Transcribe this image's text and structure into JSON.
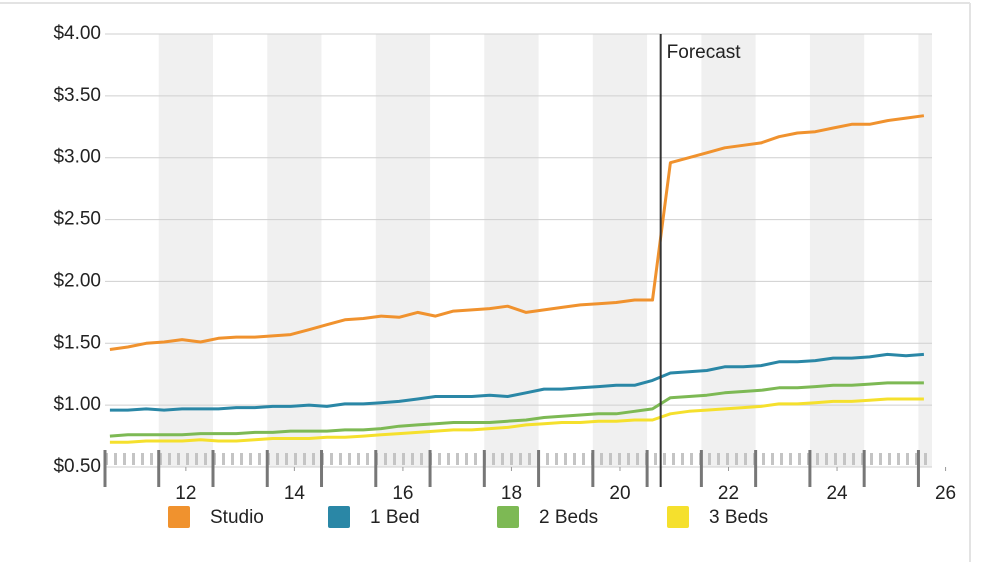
{
  "chart_data": {
    "type": "line",
    "x": [
      10.6,
      10.93,
      11.27,
      11.6,
      11.93,
      12.27,
      12.6,
      12.93,
      13.27,
      13.6,
      13.93,
      14.27,
      14.6,
      14.93,
      15.27,
      15.6,
      15.93,
      16.27,
      16.6,
      16.93,
      17.27,
      17.6,
      17.93,
      18.27,
      18.6,
      18.93,
      19.27,
      19.6,
      19.93,
      20.27,
      20.6,
      20.93,
      21.27,
      21.6,
      21.93,
      22.27,
      22.6,
      22.93,
      23.27,
      23.6,
      23.93,
      24.27,
      24.6,
      24.93,
      25.27,
      25.6
    ],
    "series": [
      {
        "name": "Studio",
        "color": "#f0922e",
        "values": [
          1.45,
          1.47,
          1.5,
          1.51,
          1.53,
          1.51,
          1.54,
          1.55,
          1.55,
          1.56,
          1.57,
          1.61,
          1.65,
          1.69,
          1.7,
          1.72,
          1.71,
          1.75,
          1.72,
          1.76,
          1.77,
          1.78,
          1.8,
          1.75,
          1.77,
          1.79,
          1.81,
          1.82,
          1.83,
          1.85,
          1.85,
          2.96,
          3.0,
          3.04,
          3.08,
          3.1,
          3.12,
          3.17,
          3.2,
          3.21,
          3.24,
          3.27,
          3.27,
          3.3,
          3.32,
          3.34
        ]
      },
      {
        "name": "1 Bed",
        "color": "#2a87a6",
        "values": [
          0.96,
          0.96,
          0.97,
          0.96,
          0.97,
          0.97,
          0.97,
          0.98,
          0.98,
          0.99,
          0.99,
          1.0,
          0.99,
          1.01,
          1.01,
          1.02,
          1.03,
          1.05,
          1.07,
          1.07,
          1.07,
          1.08,
          1.07,
          1.1,
          1.13,
          1.13,
          1.14,
          1.15,
          1.16,
          1.16,
          1.2,
          1.26,
          1.27,
          1.28,
          1.31,
          1.31,
          1.32,
          1.35,
          1.35,
          1.36,
          1.38,
          1.38,
          1.39,
          1.41,
          1.4,
          1.41
        ]
      },
      {
        "name": "2 Beds",
        "color": "#7db954",
        "values": [
          0.75,
          0.76,
          0.76,
          0.76,
          0.76,
          0.77,
          0.77,
          0.77,
          0.78,
          0.78,
          0.79,
          0.79,
          0.79,
          0.8,
          0.8,
          0.81,
          0.83,
          0.84,
          0.85,
          0.86,
          0.86,
          0.86,
          0.87,
          0.88,
          0.9,
          0.91,
          0.92,
          0.93,
          0.93,
          0.95,
          0.97,
          1.06,
          1.07,
          1.08,
          1.1,
          1.11,
          1.12,
          1.14,
          1.14,
          1.15,
          1.16,
          1.16,
          1.17,
          1.18,
          1.18,
          1.18
        ]
      },
      {
        "name": "3 Beds",
        "color": "#f5e02d",
        "values": [
          0.7,
          0.7,
          0.71,
          0.71,
          0.71,
          0.72,
          0.71,
          0.71,
          0.72,
          0.73,
          0.73,
          0.73,
          0.74,
          0.74,
          0.75,
          0.76,
          0.77,
          0.78,
          0.79,
          0.8,
          0.8,
          0.81,
          0.82,
          0.84,
          0.85,
          0.86,
          0.86,
          0.87,
          0.87,
          0.88,
          0.88,
          0.93,
          0.95,
          0.96,
          0.97,
          0.98,
          0.99,
          1.01,
          1.01,
          1.02,
          1.03,
          1.03,
          1.04,
          1.05,
          1.05,
          1.05
        ]
      }
    ],
    "xlim": [
      10.51,
      25.75
    ],
    "xticks": [
      12,
      14,
      16,
      18,
      20,
      22,
      24,
      26
    ],
    "ylim": [
      0.5,
      4.0
    ],
    "yticks": [
      {
        "value": 0.5,
        "label": "$0.50"
      },
      {
        "value": 1,
        "label": "$1.00"
      },
      {
        "value": 1.5,
        "label": "$1.50"
      },
      {
        "value": 2,
        "label": "$2.00"
      },
      {
        "value": 2.5,
        "label": "$2.50"
      },
      {
        "value": 3,
        "label": "$3.00"
      },
      {
        "value": 3.5,
        "label": "$3.50"
      },
      {
        "value": 4,
        "label": "$4.00"
      }
    ],
    "grid": true,
    "annotations": [
      {
        "text": "Forecast",
        "x": 20.75
      }
    ]
  }
}
